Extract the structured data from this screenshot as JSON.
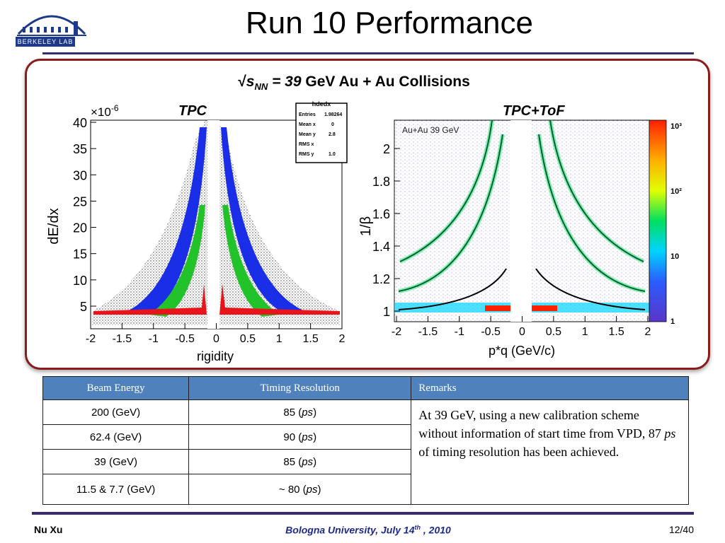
{
  "slide": {
    "title": "Run 10 Performance",
    "collision_label": {
      "sqrt": "√",
      "s": "s",
      "nn": "NN",
      "eq": " = 39",
      "rest": " GeV Au + Au Collisions"
    }
  },
  "logo": {
    "text": "BERKELEY LAB"
  },
  "tpc_plot": {
    "label": "TPC",
    "multiplier": "×10",
    "multiplier_exp": "-6",
    "y_axis_label": "dE/dx",
    "x_axis_label": "rigidity",
    "y_ticks": [
      "5",
      "10",
      "15",
      "20",
      "25",
      "30",
      "35",
      "40"
    ],
    "x_ticks": [
      "-2",
      "-1.5",
      "-1",
      "-0.5",
      "0",
      "0.5",
      "1",
      "1.5",
      "2"
    ],
    "stats_box": {
      "title": "hdedx",
      "rows": [
        {
          "key": "Entries",
          "value": "1.98264"
        },
        {
          "key": "Mean x",
          "value": "0"
        },
        {
          "key": "Mean y",
          "value": "2.8"
        },
        {
          "key": "RMS x",
          "value": ""
        },
        {
          "key": "RMS y",
          "value": "1.0"
        }
      ]
    }
  },
  "tof_plot": {
    "label": "TPC+ToF",
    "inner_label": "Au+Au 39 GeV",
    "y_axis_label": "1/β",
    "x_axis_label": "p*q (GeV/c)",
    "y_ticks": [
      "1",
      "1.2",
      "1.4",
      "1.6",
      "1.8",
      "2"
    ],
    "x_ticks": [
      "-2",
      "-1.5",
      "-1",
      "-0.5",
      "0",
      "0.5",
      "1",
      "1.5",
      "2"
    ],
    "colorbar_ticks": [
      "1",
      "10",
      "10²",
      "10³"
    ],
    "colors": [
      "#ffffff",
      "#5a36c8",
      "#2a5cff",
      "#00d4ff",
      "#00e060",
      "#e0ff00",
      "#ffb000",
      "#ff2000"
    ]
  },
  "table": {
    "headers": [
      "Beam Energy",
      "Timing Resolution",
      "Remarks"
    ],
    "rows": [
      {
        "energy": "200 (GeV)",
        "res": "85 (",
        "unit": "ps",
        "close": ")"
      },
      {
        "energy": "62.4 (GeV)",
        "res": "90 (",
        "unit": "ps",
        "close": ")"
      },
      {
        "energy": "39 (GeV)",
        "res": "85 (",
        "unit": "ps",
        "close": ")"
      },
      {
        "energy": "11.5 & 7.7 (GeV)",
        "res": "~ 80 (",
        "unit": "ps",
        "close": ")"
      }
    ],
    "remark_a": "At 39 GeV, using a new calibration scheme without information of start time from VPD, 87 ",
    "remark_ps": "ps",
    "remark_b": " of timing resolution has been achieved."
  },
  "footer": {
    "left": "Nu Xu",
    "center": "Bologna University, July 14",
    "center_sup": "th",
    "center_tail": " , 2010",
    "right": "12/40"
  }
}
